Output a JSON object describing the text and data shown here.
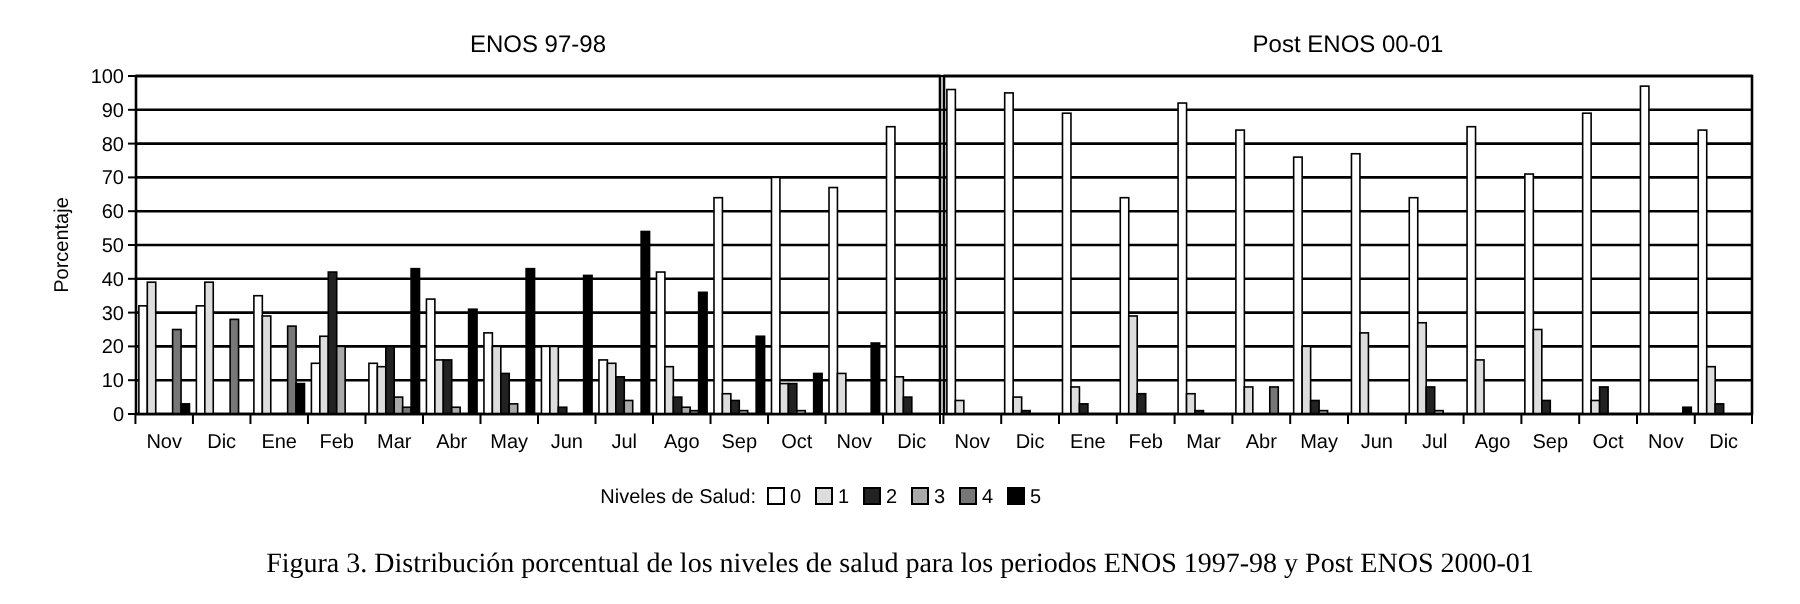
{
  "chart_data": [
    {
      "type": "bar",
      "title": "ENOS 97-98",
      "ylabel": "Porcentaje",
      "legend_title": "Niveles de Salud:",
      "legend": "bottom",
      "grid": "y",
      "ylim": [
        0,
        100
      ],
      "yticks": [
        0,
        10,
        20,
        30,
        40,
        50,
        60,
        70,
        80,
        90,
        100
      ],
      "annotations": [
        "Figura 3. Distribución porcentual de los niveles de salud para los periodos ENOS 1997-98 y Post ENOS 2000-01"
      ],
      "categories": [
        "Nov",
        "Dic",
        "Ene",
        "Feb",
        "Mar",
        "Abr",
        "May",
        "Jun",
        "Jul",
        "Ago",
        "Sep",
        "Oct",
        "Nov",
        "Dic"
      ],
      "series": [
        {
          "name": "0",
          "color": "#ffffff",
          "values": [
            32,
            32,
            35,
            15,
            15,
            34,
            24,
            20,
            16,
            42,
            64,
            70,
            67,
            85
          ]
        },
        {
          "name": "1",
          "color": "#dddddd",
          "values": [
            39,
            39,
            29,
            23,
            14,
            16,
            20,
            20,
            15,
            14,
            6,
            9,
            12,
            11
          ]
        },
        {
          "name": "2",
          "color": "#222222",
          "values": [
            0,
            0,
            0,
            42,
            20,
            16,
            12,
            2,
            11,
            5,
            4,
            9,
            0,
            5
          ]
        },
        {
          "name": "3",
          "color": "#aaaaaa",
          "values": [
            0,
            0,
            0,
            20,
            5,
            2,
            3,
            0,
            4,
            2,
            1,
            1,
            0,
            0
          ]
        },
        {
          "name": "4",
          "color": "#777777",
          "values": [
            25,
            28,
            26,
            0,
            2,
            0,
            0,
            0,
            0,
            1,
            0,
            0,
            0,
            0
          ]
        },
        {
          "name": "5",
          "color": "#000000",
          "values": [
            3,
            0,
            9,
            0,
            43,
            31,
            43,
            41,
            54,
            36,
            23,
            12,
            21,
            0
          ]
        }
      ]
    },
    {
      "type": "bar",
      "title": "Post ENOS 00-01",
      "grid": "y",
      "tick_labels": "x",
      "ylim": [
        0,
        100
      ],
      "yticks": [
        0,
        10,
        20,
        30,
        40,
        50,
        60,
        70,
        80,
        90,
        100
      ],
      "categories": [
        "Nov",
        "Dic",
        "Ene",
        "Feb",
        "Mar",
        "Abr",
        "May",
        "Jun",
        "Jul",
        "Ago",
        "Sep",
        "Oct",
        "Nov",
        "Dic"
      ],
      "series": [
        {
          "color": "#ffffff",
          "values": [
            96,
            95,
            89,
            64,
            92,
            84,
            76,
            77,
            64,
            85,
            71,
            89,
            97,
            84
          ]
        },
        {
          "color": "#dddddd",
          "values": [
            4,
            5,
            8,
            29,
            6,
            8,
            20,
            24,
            27,
            16,
            25,
            4,
            0,
            14
          ]
        },
        {
          "color": "#222222",
          "values": [
            0,
            1,
            3,
            6,
            1,
            0,
            4,
            0,
            8,
            0,
            4,
            8,
            0,
            3
          ]
        },
        {
          "color": "#aaaaaa",
          "values": [
            0,
            0,
            0,
            0,
            0,
            0,
            1,
            0,
            1,
            0,
            0,
            0,
            0,
            0
          ]
        },
        {
          "color": "#777777",
          "values": [
            0,
            0,
            0,
            0,
            0,
            8,
            0,
            0,
            0,
            0,
            0,
            0,
            0,
            0
          ]
        },
        {
          "color": "#000000",
          "values": [
            0,
            0,
            0,
            0,
            0,
            0,
            0,
            0,
            0,
            0,
            0,
            0,
            2,
            0
          ]
        }
      ]
    }
  ]
}
